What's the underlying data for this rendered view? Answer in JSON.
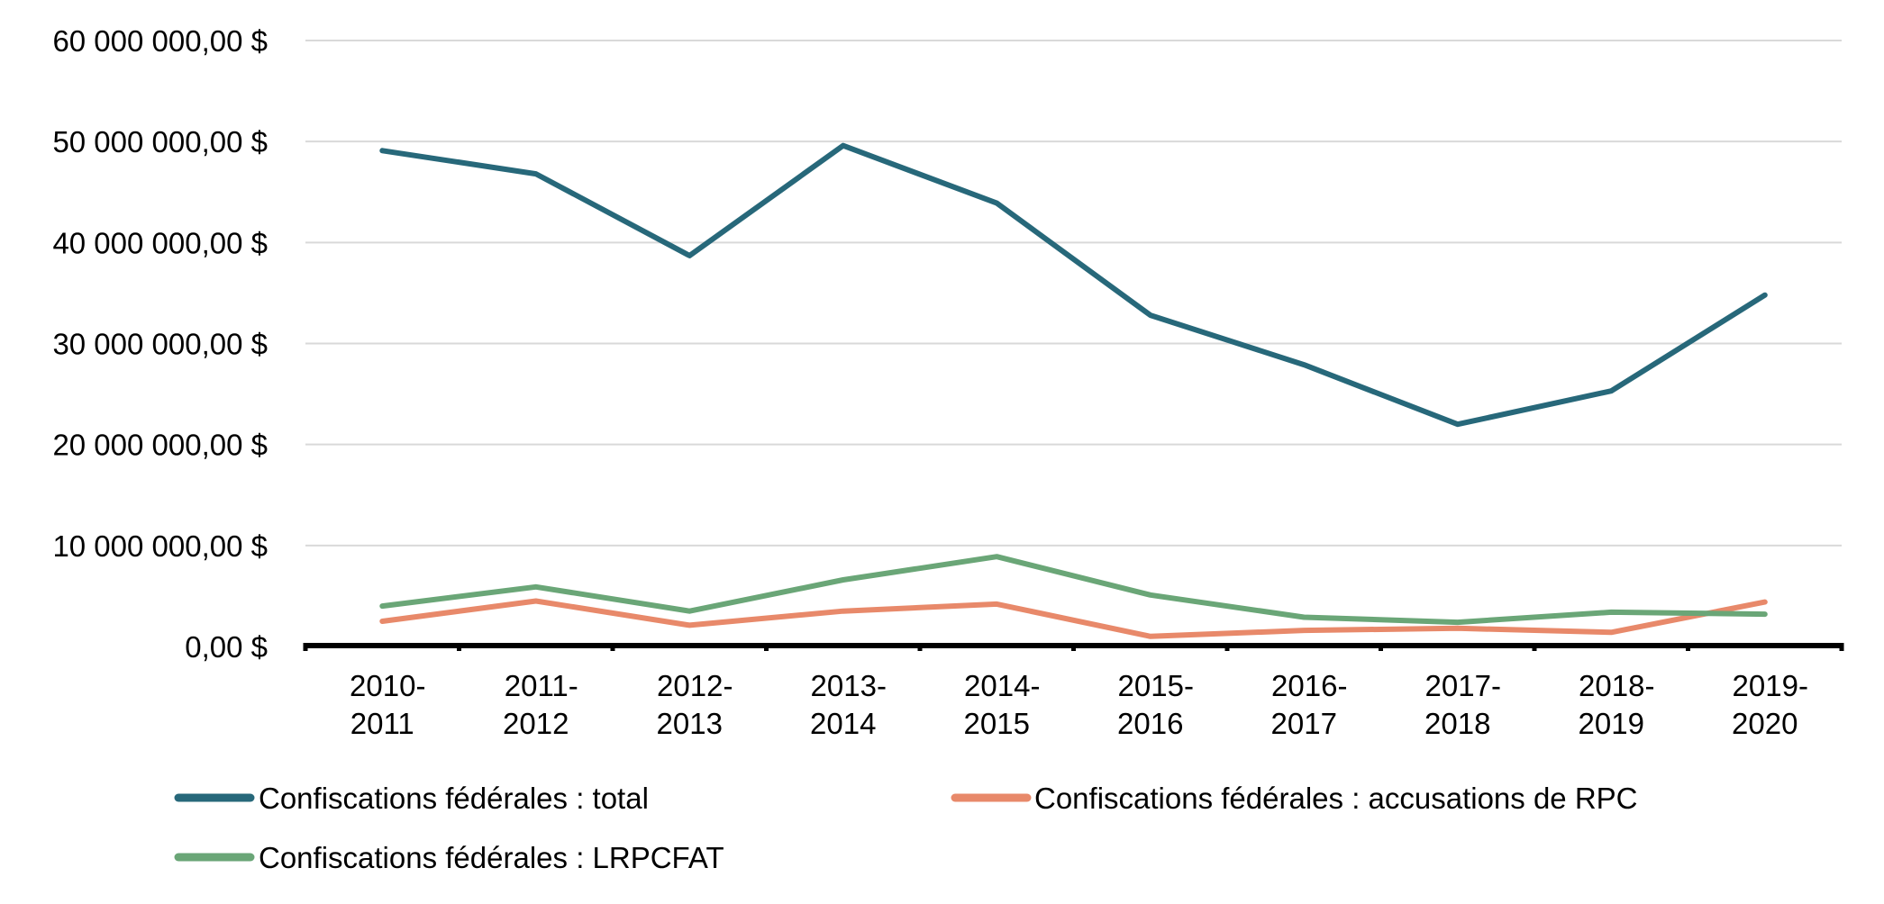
{
  "chart_data": {
    "type": "line",
    "title": "",
    "xlabel": "",
    "ylabel": "",
    "ylim": [
      0,
      60000000
    ],
    "grid": true,
    "legend_position": "bottom",
    "y_ticks": [
      {
        "value": 0,
        "label": "0,00 $"
      },
      {
        "value": 10000000,
        "label": "10 000 000,00 $"
      },
      {
        "value": 20000000,
        "label": "20 000 000,00 $"
      },
      {
        "value": 30000000,
        "label": "30 000 000,00 $"
      },
      {
        "value": 40000000,
        "label": "40 000 000,00 $"
      },
      {
        "value": 50000000,
        "label": "50 000 000,00 $"
      },
      {
        "value": 60000000,
        "label": "60 000 000,00 $"
      }
    ],
    "categories": [
      [
        "2010-",
        "2011"
      ],
      [
        "2011-",
        "2012"
      ],
      [
        "2012-",
        "2013"
      ],
      [
        "2013-",
        "2014"
      ],
      [
        "2014-",
        "2015"
      ],
      [
        "2015-",
        "2016"
      ],
      [
        "2016-",
        "2017"
      ],
      [
        "2017-",
        "2018"
      ],
      [
        "2018-",
        "2019"
      ],
      [
        "2019-",
        "2020"
      ]
    ],
    "series": [
      {
        "name": "Confiscations fédérales : total",
        "color": "#27687A",
        "values": [
          49100000,
          46800000,
          38700000,
          49600000,
          43900000,
          32800000,
          27900000,
          22000000,
          25300000,
          34800000
        ]
      },
      {
        "name": "Confiscations fédérales : accusations de RPC",
        "color": "#E8896A",
        "values": [
          2500000,
          4500000,
          2100000,
          3500000,
          4200000,
          1000000,
          1600000,
          1800000,
          1400000,
          4400000
        ]
      },
      {
        "name": "Confiscations fédérales : LRPCFAT",
        "color": "#6AA677",
        "values": [
          4000000,
          5900000,
          3500000,
          6600000,
          8900000,
          5100000,
          2900000,
          2400000,
          3400000,
          3200000
        ]
      }
    ]
  }
}
